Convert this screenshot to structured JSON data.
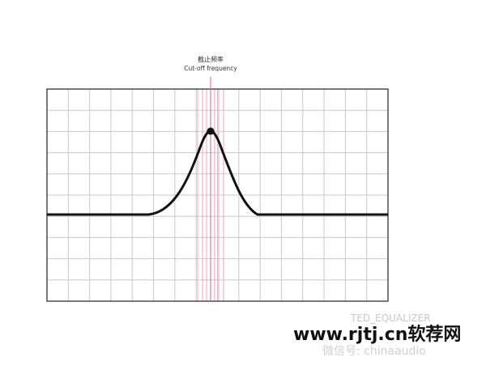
{
  "annotation": {
    "title_cn": "截止频率",
    "title_en": "Cut-off frequency"
  },
  "footer": {
    "label": "TED_EQUALIZER",
    "watermark_site": "www.rjtj.cn软荐网",
    "watermark_wechat": "微信号: chinaaudio"
  }
}
